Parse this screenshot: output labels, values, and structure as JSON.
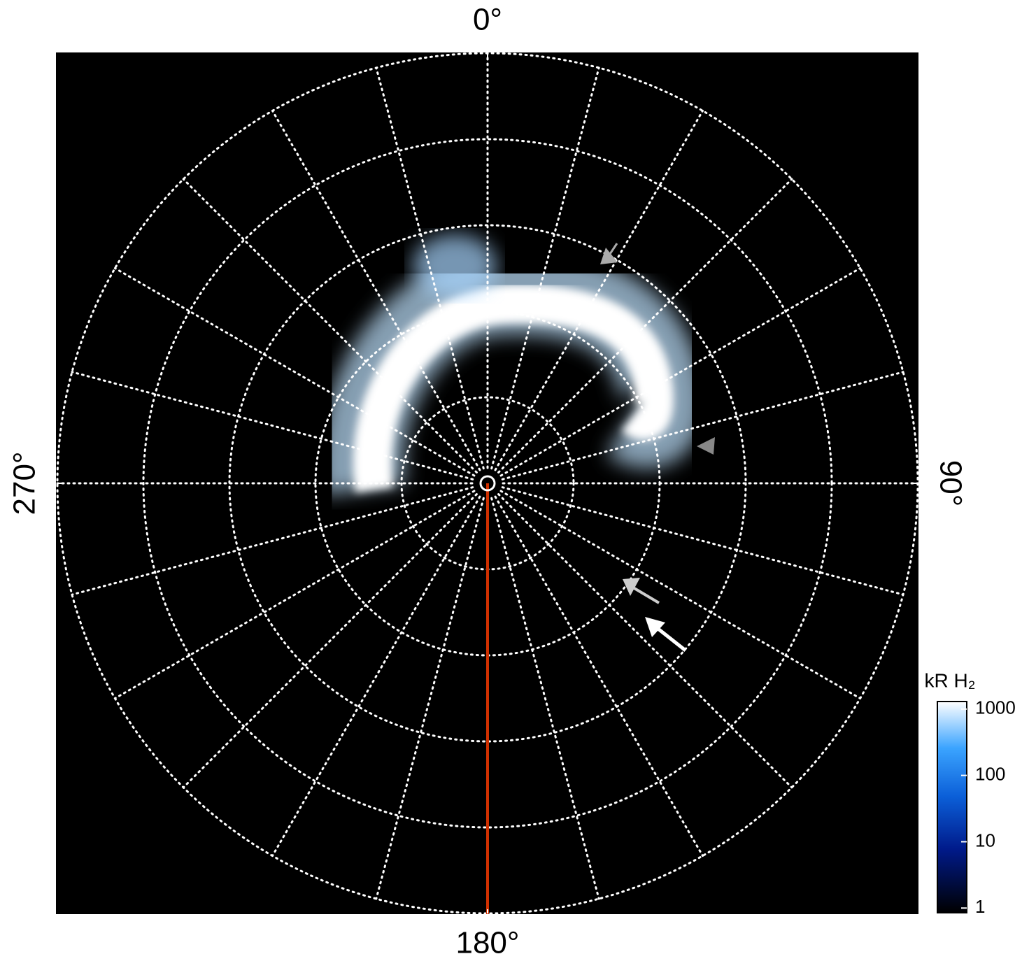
{
  "chart_data": {
    "type": "polar",
    "angle_ticks": [
      {
        "value": 0,
        "label": "0°"
      },
      {
        "value": 90,
        "label": "90°"
      },
      {
        "value": 180,
        "label": "180°"
      },
      {
        "value": 270,
        "label": "270°"
      }
    ],
    "colorbar": {
      "label": "kR H₂",
      "log": true,
      "clim": [
        0.85,
        1300
      ],
      "ticks": [
        1,
        10,
        100,
        1000
      ]
    },
    "grid": true
  }
}
